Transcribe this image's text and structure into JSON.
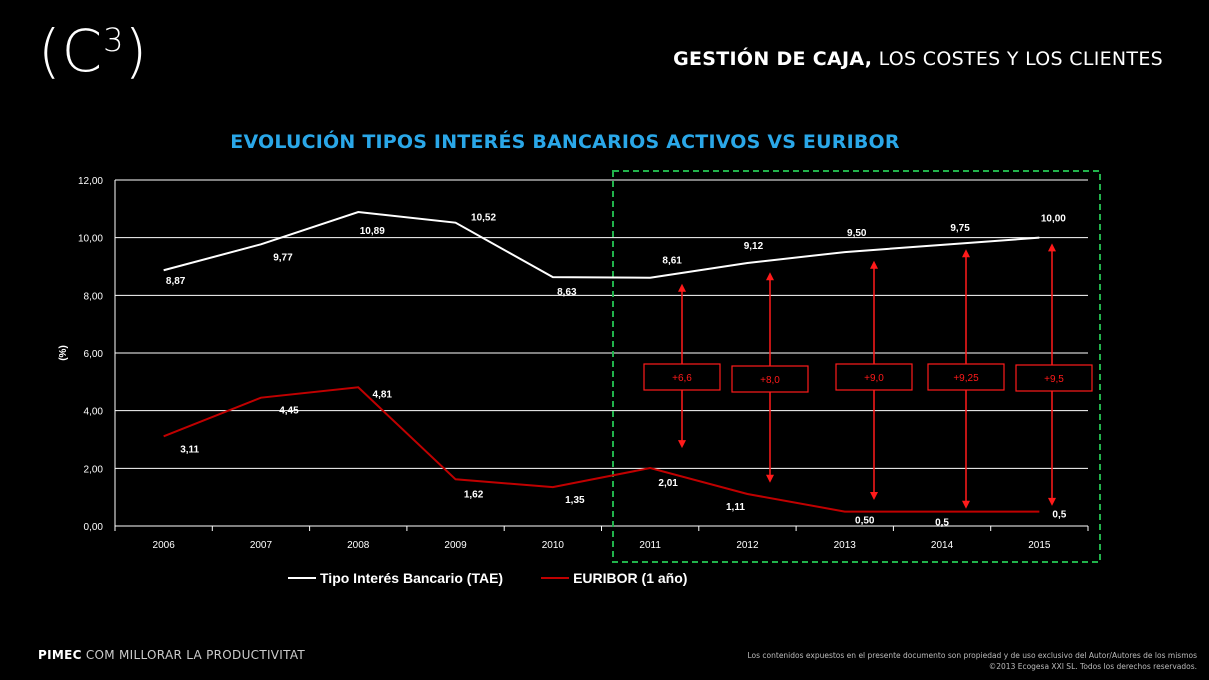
{
  "header": {
    "logo_text": "(C",
    "logo_sup": "3",
    "logo_close": ")",
    "title_bold": "GESTIÓN DE CAJA,",
    "title_rest": " LOS COSTES Y LOS CLIENTES"
  },
  "footer": {
    "brand": "PIMEC",
    "tagline": " COM MILLORAR LA PRODUCTIVITAT",
    "legal_line1": "Los contenidos expuestos en el presente documento son propiedad y de uso exclusivo del Autor/Autores de los mismos",
    "legal_line2": "©2013 Ecogesa XXI SL. Todos los derechos reservados."
  },
  "colors": {
    "title": "#2aa7e8",
    "tae": "#ffffff",
    "euribor": "#c00000",
    "annotation": "#ff1a1a",
    "highlight_box": "#21b24b"
  },
  "chart_data": {
    "type": "line",
    "title": "EVOLUCIÓN TIPOS INTERÉS BANCARIOS ACTIVOS VS EURIBOR",
    "ylabel": "(%)",
    "xlabel": "",
    "ylim": [
      0,
      12
    ],
    "yticks": [
      "0,00",
      "2,00",
      "4,00",
      "6,00",
      "8,00",
      "10,00",
      "12,00"
    ],
    "ytick_values": [
      0,
      2,
      4,
      6,
      8,
      10,
      12
    ],
    "categories": [
      "2006",
      "2007",
      "2008",
      "2009",
      "2010",
      "2011",
      "2012",
      "2013",
      "2014",
      "2015"
    ],
    "grid": "horizontal",
    "legend_position": "bottom",
    "series": [
      {
        "name": "Tipo Interés Bancario (TAE)",
        "values": [
          8.87,
          9.77,
          10.89,
          10.52,
          8.63,
          8.61,
          9.12,
          9.5,
          9.75,
          10.0
        ],
        "labels": [
          "8,87",
          "9,77",
          "10,89",
          "10,52",
          "8,63",
          "8,61",
          "9,12",
          "9,50",
          "9,75",
          "10,00"
        ]
      },
      {
        "name": "EURIBOR (1 año)",
        "values": [
          3.11,
          4.45,
          4.81,
          1.62,
          1.35,
          2.01,
          1.11,
          0.5,
          0.5,
          0.5
        ],
        "labels": [
          "3,11",
          "4,45",
          "4,81",
          "1,62",
          "1,35",
          "2,01",
          "1,11",
          "0,50",
          "0,5",
          "0,5"
        ]
      }
    ],
    "spread_annotations": [
      {
        "label": "+6,6",
        "top": 8.4,
        "bottom": 2.7
      },
      {
        "label": "+8,0",
        "top": 8.8,
        "bottom": 1.5
      },
      {
        "label": "+9,0",
        "top": 9.2,
        "bottom": 0.9
      },
      {
        "label": "+9,25",
        "top": 9.6,
        "bottom": 0.6
      },
      {
        "label": "+9,5",
        "top": 9.8,
        "bottom": 0.7
      }
    ]
  }
}
